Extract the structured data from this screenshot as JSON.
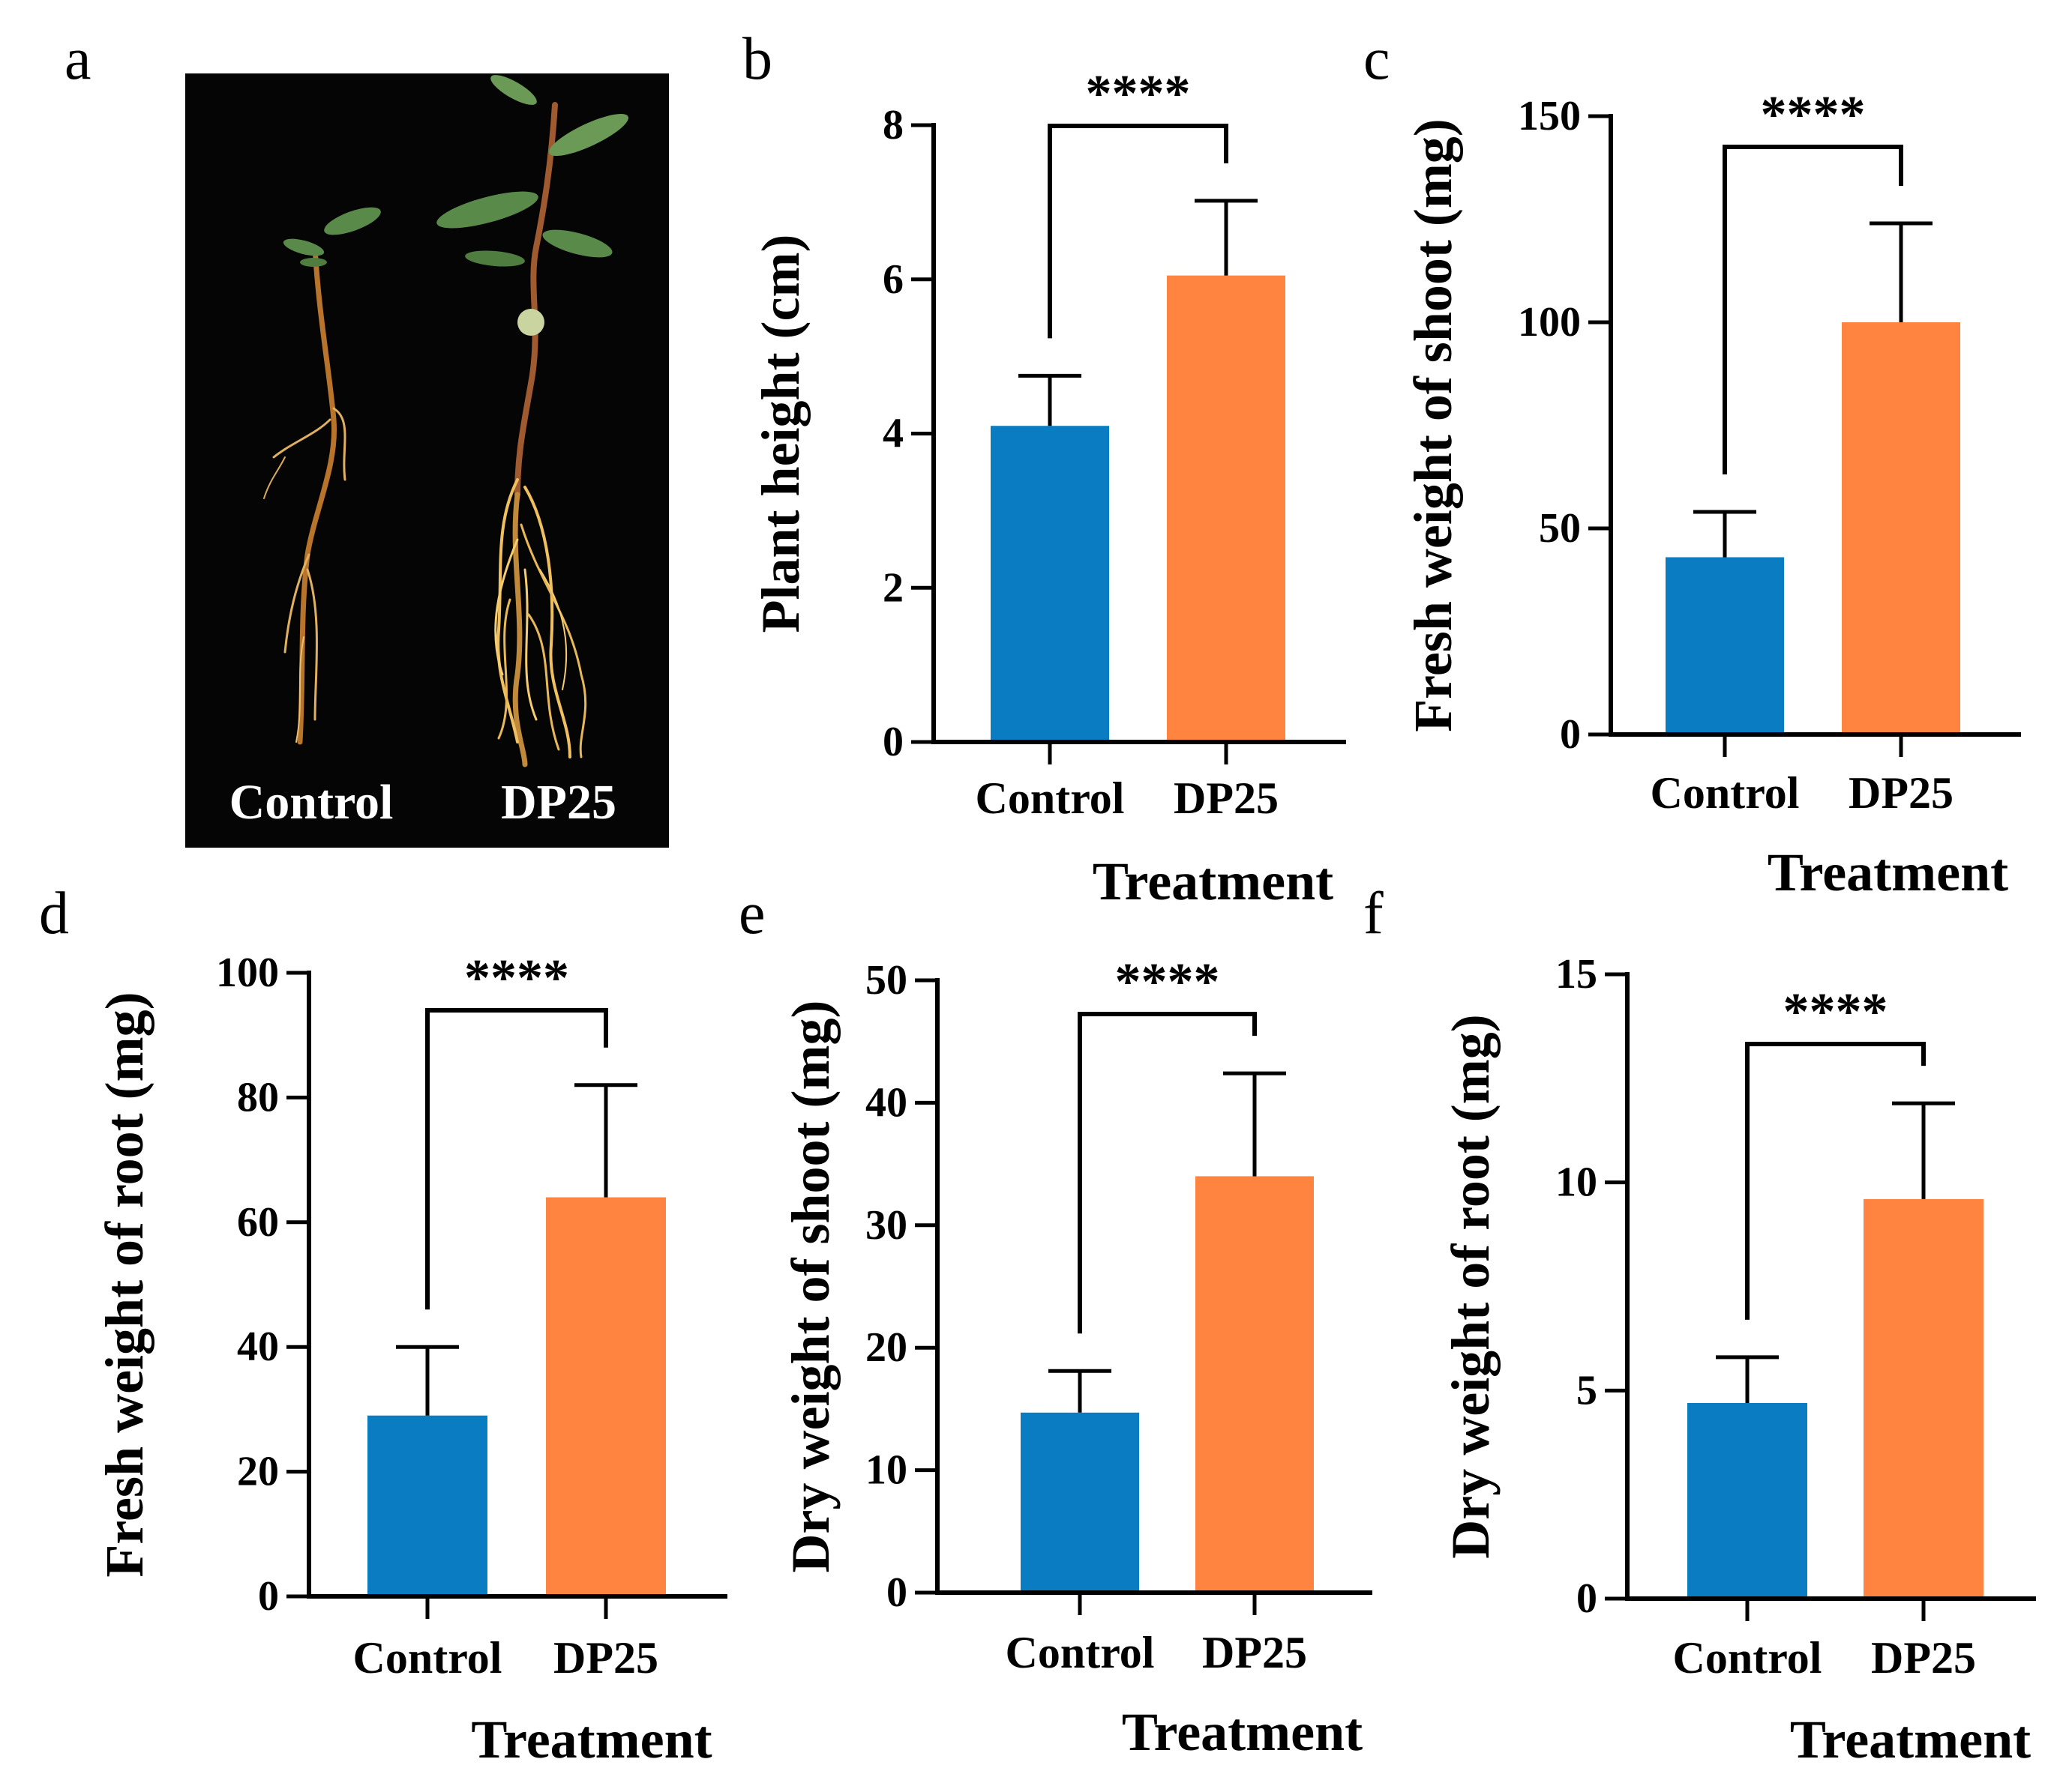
{
  "figure": {
    "panel_letters": [
      "a",
      "b",
      "c",
      "d",
      "e",
      "f"
    ],
    "photo": {
      "labels": [
        "Control",
        "DP25"
      ],
      "background": "#050505"
    },
    "colors": {
      "control": "#0A7DC2",
      "dp25": "#FF8440",
      "axis": "#000000"
    }
  },
  "chart_data": [
    {
      "panel": "b",
      "type": "bar",
      "categories": [
        "Control",
        "DP25"
      ],
      "values": [
        4.1,
        6.05
      ],
      "errors": [
        0.65,
        0.97
      ],
      "xlabel": "Treatment",
      "ylabel": "Plant height (cm)",
      "ylim": [
        0,
        8
      ],
      "yticks": [
        0,
        2,
        4,
        6,
        8
      ],
      "significance": "****"
    },
    {
      "panel": "c",
      "type": "bar",
      "categories": [
        "Control",
        "DP25"
      ],
      "values": [
        43,
        100
      ],
      "errors": [
        11,
        24
      ],
      "xlabel": "Treatment",
      "ylabel": "Fresh weight of shoot  (mg)",
      "ylim": [
        0,
        150
      ],
      "yticks": [
        0,
        50,
        100,
        150
      ],
      "significance": "****"
    },
    {
      "panel": "d",
      "type": "bar",
      "categories": [
        "Control",
        "DP25"
      ],
      "values": [
        29,
        64
      ],
      "errors": [
        11,
        18
      ],
      "xlabel": "Treatment",
      "ylabel": "Fresh weight of root (mg)",
      "ylim": [
        0,
        100
      ],
      "yticks": [
        0,
        20,
        40,
        60,
        80,
        100
      ],
      "significance": "****"
    },
    {
      "panel": "e",
      "type": "bar",
      "categories": [
        "Control",
        "DP25"
      ],
      "values": [
        14.7,
        34
      ],
      "errors": [
        3.4,
        8.4
      ],
      "xlabel": "Treatment",
      "ylabel": "Dry weight of shoot  (mg)",
      "ylim": [
        0,
        50
      ],
      "yticks": [
        0,
        10,
        20,
        30,
        40,
        50
      ],
      "significance": "****"
    },
    {
      "panel": "f",
      "type": "bar",
      "categories": [
        "Control",
        "DP25"
      ],
      "values": [
        4.7,
        9.6
      ],
      "errors": [
        1.1,
        2.3
      ],
      "xlabel": "Treatment",
      "ylabel": "Dry weight of root  (mg)",
      "ylim": [
        0,
        15
      ],
      "yticks": [
        0,
        5,
        10,
        15
      ],
      "significance": "****"
    }
  ]
}
